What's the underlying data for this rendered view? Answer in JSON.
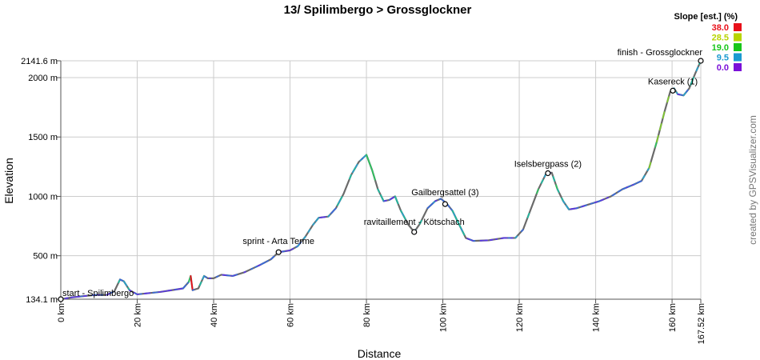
{
  "chart_data": {
    "type": "line",
    "title": "13/ Spilimbergo > Grossglockner",
    "xlabel": "Distance",
    "ylabel": "Elevation",
    "xlim": [
      0,
      167.52
    ],
    "ylim": [
      134.1,
      2141.6
    ],
    "x_ticks": [
      {
        "value": 0,
        "label": "0 km"
      },
      {
        "value": 20,
        "label": "20 km"
      },
      {
        "value": 40,
        "label": "40 km"
      },
      {
        "value": 60,
        "label": "60 km"
      },
      {
        "value": 80,
        "label": "80 km"
      },
      {
        "value": 100,
        "label": "100 km"
      },
      {
        "value": 120,
        "label": "120 km"
      },
      {
        "value": 140,
        "label": "140 km"
      },
      {
        "value": 160,
        "label": "160 km"
      },
      {
        "value": 167.52,
        "label": "167.52 km"
      }
    ],
    "y_ticks": [
      {
        "value": 134.1,
        "label": "134.1 m"
      },
      {
        "value": 500,
        "label": "500 m"
      },
      {
        "value": 1000,
        "label": "1000 m"
      },
      {
        "value": 1500,
        "label": "1500 m"
      },
      {
        "value": 2000,
        "label": "2000 m"
      },
      {
        "value": 2141.6,
        "label": "2141.6 m"
      }
    ],
    "grid": true,
    "profile": [
      [
        0,
        134.1
      ],
      [
        3,
        150
      ],
      [
        6,
        160
      ],
      [
        9,
        170
      ],
      [
        12,
        170
      ],
      [
        14,
        200
      ],
      [
        15.5,
        300
      ],
      [
        16.5,
        285
      ],
      [
        18,
        210
      ],
      [
        20,
        175
      ],
      [
        23,
        185
      ],
      [
        26,
        195
      ],
      [
        29,
        210
      ],
      [
        32,
        225
      ],
      [
        33.5,
        280
      ],
      [
        34,
        330
      ],
      [
        34.5,
        210
      ],
      [
        36,
        225
      ],
      [
        37.5,
        330
      ],
      [
        38.5,
        310
      ],
      [
        40,
        310
      ],
      [
        42,
        340
      ],
      [
        45,
        330
      ],
      [
        48,
        360
      ],
      [
        52,
        420
      ],
      [
        55,
        470
      ],
      [
        57,
        530
      ],
      [
        60,
        545
      ],
      [
        62,
        580
      ],
      [
        64,
        660
      ],
      [
        66,
        760
      ],
      [
        67.5,
        820
      ],
      [
        70,
        830
      ],
      [
        72,
        900
      ],
      [
        74,
        1020
      ],
      [
        76,
        1180
      ],
      [
        78,
        1290
      ],
      [
        80,
        1350
      ],
      [
        81.5,
        1220
      ],
      [
        83,
        1060
      ],
      [
        84.5,
        960
      ],
      [
        86,
        970
      ],
      [
        87.5,
        1000
      ],
      [
        89,
        880
      ],
      [
        91,
        760
      ],
      [
        92.5,
        700
      ],
      [
        94,
        770
      ],
      [
        96,
        900
      ],
      [
        98,
        960
      ],
      [
        99.5,
        980
      ],
      [
        101,
        940
      ],
      [
        102.5,
        880
      ],
      [
        104,
        780
      ],
      [
        106,
        650
      ],
      [
        108,
        625
      ],
      [
        112,
        630
      ],
      [
        116,
        650
      ],
      [
        119,
        650
      ],
      [
        121,
        720
      ],
      [
        123,
        890
      ],
      [
        125,
        1060
      ],
      [
        127,
        1190
      ],
      [
        128.5,
        1200
      ],
      [
        130,
        1060
      ],
      [
        131.5,
        960
      ],
      [
        133,
        890
      ],
      [
        135,
        900
      ],
      [
        138,
        930
      ],
      [
        141,
        960
      ],
      [
        144,
        1000
      ],
      [
        147,
        1060
      ],
      [
        150,
        1100
      ],
      [
        152,
        1130
      ],
      [
        154,
        1240
      ],
      [
        156,
        1460
      ],
      [
        158,
        1710
      ],
      [
        159.5,
        1880
      ],
      [
        160.5,
        1910
      ],
      [
        161.5,
        1860
      ],
      [
        163,
        1850
      ],
      [
        164.5,
        1910
      ],
      [
        166,
        2030
      ],
      [
        167.52,
        2141.6
      ]
    ],
    "waypoints": [
      {
        "x": 0,
        "y": 134.1,
        "label": "start - Spilimbergo",
        "anchor": "start",
        "dx": 2,
        "dy": -4
      },
      {
        "x": 57,
        "y": 530,
        "label": "sprint - Arta Terme",
        "anchor": "middle",
        "dx": 0,
        "dy": -10
      },
      {
        "x": 92.5,
        "y": 700,
        "label": "ravitaillement - Kötschach",
        "anchor": "middle",
        "dx": 0,
        "dy": -9
      },
      {
        "x": 100.6,
        "y": 935,
        "label": "Gailbergsattel (3)",
        "anchor": "middle",
        "dx": 0,
        "dy": -11
      },
      {
        "x": 127.5,
        "y": 1195,
        "label": "Iselsbergpass (2)",
        "anchor": "middle",
        "dx": 0,
        "dy": -8
      },
      {
        "x": 160.2,
        "y": 1890,
        "label": "Kasereck (1)",
        "anchor": "middle",
        "dx": 0,
        "dy": -8
      },
      {
        "x": 167.52,
        "y": 2141.6,
        "label": "finish - Grossglockner",
        "anchor": "end",
        "dx": 2,
        "dy": -7
      }
    ],
    "legend": {
      "title": "Slope [est.] (%)",
      "position": "top-right",
      "items": [
        {
          "label": "38.0",
          "color": "#e8101a"
        },
        {
          "label": "28.5",
          "color": "#b8d400"
        },
        {
          "label": "19.0",
          "color": "#18c61a"
        },
        {
          "label": "9.5",
          "color": "#1a9ad0"
        },
        {
          "label": "0.0",
          "color": "#7a10d8"
        }
      ]
    },
    "slope_palette": [
      "#6a1ad6",
      "#5a3ae0",
      "#3a6ad8",
      "#2aa0c8",
      "#20b8a0",
      "#30c060",
      "#80c830",
      "#c8d020",
      "#e07018",
      "#e8101a"
    ]
  },
  "credit": "created by GPSVisualizer.com"
}
